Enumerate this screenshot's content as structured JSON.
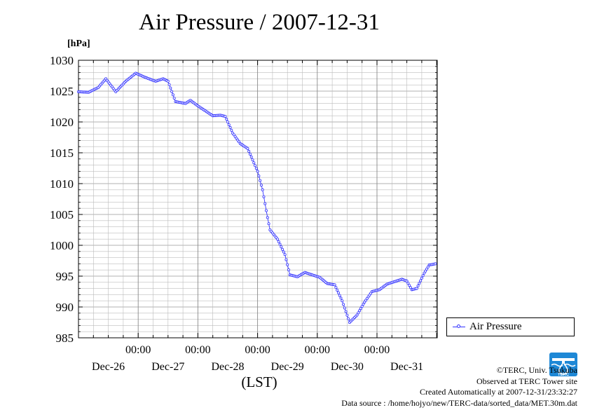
{
  "title": "Air Pressure / 2007-12-31",
  "unit_label": "[hPa]",
  "legend_label": "Air Pressure",
  "x_axis_label": "(LST)",
  "colors": {
    "series": "#3333ff",
    "grid": "#999999",
    "axis": "#000000"
  },
  "footer": {
    "copyright": "©TERC, Univ. Tsukuba",
    "observed": "Observed at TERC Tower site",
    "created": "Created Automatically at 2007-12-31/23:32:27",
    "source": "Data source : /home/hojyo/new/TERC-data/sorted_data/MET.30m.dat"
  },
  "logo_icon": "terc-logo-icon",
  "chart_data": {
    "type": "line",
    "title": "Air Pressure / 2007-12-31",
    "ylabel": "[hPa]",
    "xlabel": "(LST)",
    "ylim": [
      985,
      1030
    ],
    "yticks": [
      985,
      990,
      995,
      1000,
      1005,
      1010,
      1015,
      1020,
      1025,
      1030
    ],
    "xlim": [
      "2007-12-26 00:00",
      "2007-12-31 24:00"
    ],
    "xticks": [
      {
        "time": "00:00",
        "date": "Dec-27"
      },
      {
        "time": "00:00",
        "date": "Dec-28"
      },
      {
        "time": "00:00",
        "date": "Dec-29"
      },
      {
        "time": "00:00",
        "date": "Dec-30"
      },
      {
        "time": "00:00",
        "date": "Dec-31"
      }
    ],
    "day_labels": [
      "Dec-26",
      "Dec-27",
      "Dec-28",
      "Dec-29",
      "Dec-30",
      "Dec-31"
    ],
    "grid": true,
    "legend_position": "right",
    "series": [
      {
        "name": "Air Pressure",
        "resolution": "30 min",
        "points": [
          [
            "2007-12-26 00:00",
            1024.9
          ],
          [
            "2007-12-26 04:00",
            1024.8
          ],
          [
            "2007-12-26 08:00",
            1025.6
          ],
          [
            "2007-12-26 11:00",
            1027.0
          ],
          [
            "2007-12-26 15:00",
            1024.9
          ],
          [
            "2007-12-26 19:00",
            1026.6
          ],
          [
            "2007-12-26 23:00",
            1027.9
          ],
          [
            "2007-12-27 03:00",
            1027.2
          ],
          [
            "2007-12-27 07:00",
            1026.6
          ],
          [
            "2007-12-27 10:00",
            1027.0
          ],
          [
            "2007-12-27 12:00",
            1026.6
          ],
          [
            "2007-12-27 15:00",
            1023.3
          ],
          [
            "2007-12-27 19:00",
            1023.0
          ],
          [
            "2007-12-27 21:00",
            1023.5
          ],
          [
            "2007-12-28 00:00",
            1022.6
          ],
          [
            "2007-12-28 03:00",
            1021.8
          ],
          [
            "2007-12-28 06:00",
            1021.0
          ],
          [
            "2007-12-28 09:00",
            1021.1
          ],
          [
            "2007-12-28 11:00",
            1020.9
          ],
          [
            "2007-12-28 14:00",
            1018.2
          ],
          [
            "2007-12-28 17:00",
            1016.5
          ],
          [
            "2007-12-28 20:00",
            1015.7
          ],
          [
            "2007-12-29 00:00",
            1012.0
          ],
          [
            "2007-12-29 02:00",
            1009.0
          ],
          [
            "2007-12-29 04:00",
            1004.5
          ],
          [
            "2007-12-29 05:00",
            1002.5
          ],
          [
            "2007-12-29 08:00",
            1001.0
          ],
          [
            "2007-12-29 11:00",
            998.5
          ],
          [
            "2007-12-29 13:00",
            995.2
          ],
          [
            "2007-12-29 16:00",
            994.9
          ],
          [
            "2007-12-29 19:00",
            995.6
          ],
          [
            "2007-12-29 22:00",
            995.2
          ],
          [
            "2007-12-30 01:00",
            994.8
          ],
          [
            "2007-12-30 04:00",
            993.8
          ],
          [
            "2007-12-30 07:00",
            993.6
          ],
          [
            "2007-12-30 10:00",
            991.0
          ],
          [
            "2007-12-30 13:00",
            987.5
          ],
          [
            "2007-12-30 16:00",
            988.7
          ],
          [
            "2007-12-30 19:00",
            990.8
          ],
          [
            "2007-12-30 22:00",
            992.5
          ],
          [
            "2007-12-31 01:00",
            992.8
          ],
          [
            "2007-12-31 04:00",
            993.7
          ],
          [
            "2007-12-31 07:00",
            994.1
          ],
          [
            "2007-12-31 10:00",
            994.5
          ],
          [
            "2007-12-31 12:00",
            994.2
          ],
          [
            "2007-12-31 14:00",
            992.8
          ],
          [
            "2007-12-31 16:00",
            993.0
          ],
          [
            "2007-12-31 19:00",
            995.5
          ],
          [
            "2007-12-31 21:00",
            996.8
          ],
          [
            "2007-12-31 23:30",
            997.0
          ]
        ]
      }
    ]
  }
}
